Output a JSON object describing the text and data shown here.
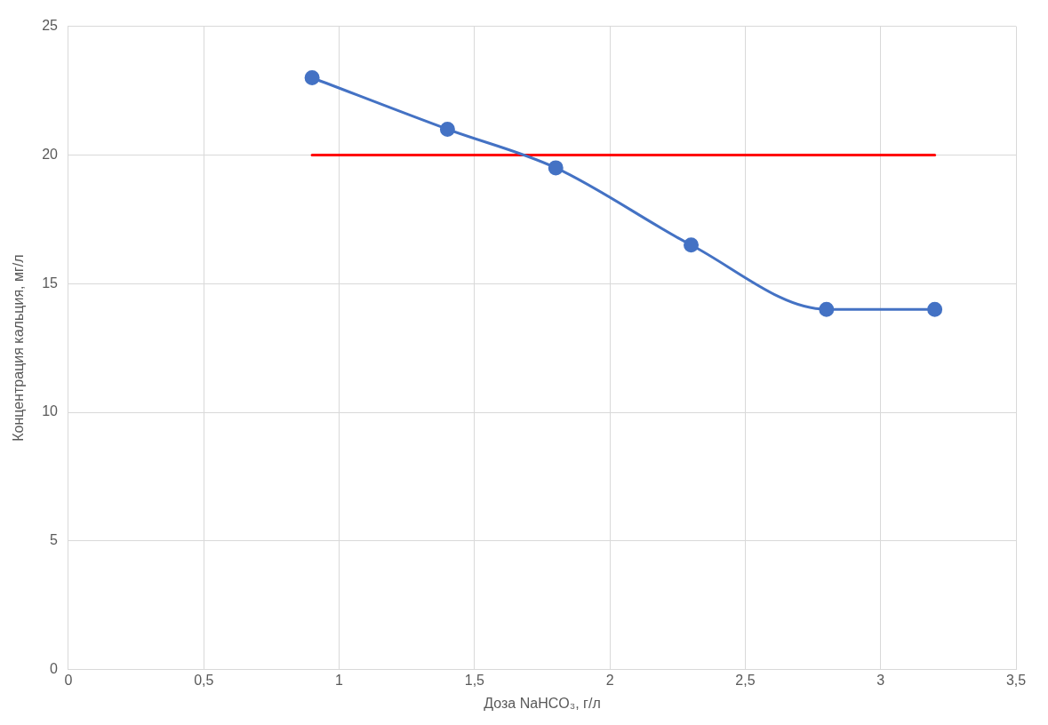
{
  "chart_data": {
    "type": "line",
    "xlabel": "Доза NaHCO₃, г/л",
    "ylabel": "Концентрация кальция, мг/л",
    "series": [
      {
        "color": "#4472c4",
        "x": [
          0.9,
          1.4,
          1.8,
          2.3,
          2.8,
          3.2
        ],
        "values": [
          23,
          21,
          19.5,
          16.5,
          14,
          14
        ],
        "marker": "circle"
      },
      {
        "color": "#ff0000",
        "x": [
          0.9,
          3.2
        ],
        "values": [
          20,
          20
        ],
        "marker": "none"
      }
    ],
    "xlim": [
      0,
      3.5
    ],
    "xticks": [
      0,
      {
        "value": 0.5,
        "label": "0,5"
      },
      1,
      {
        "value": 1.5,
        "label": "1,5"
      },
      2,
      {
        "value": 2.5,
        "label": "2,5"
      },
      3,
      {
        "value": 3.5,
        "label": "3,5"
      }
    ],
    "ylim": [
      0,
      25
    ],
    "yticks": [
      0,
      5,
      10,
      15,
      20,
      25
    ],
    "grid": true,
    "legend": false
  }
}
